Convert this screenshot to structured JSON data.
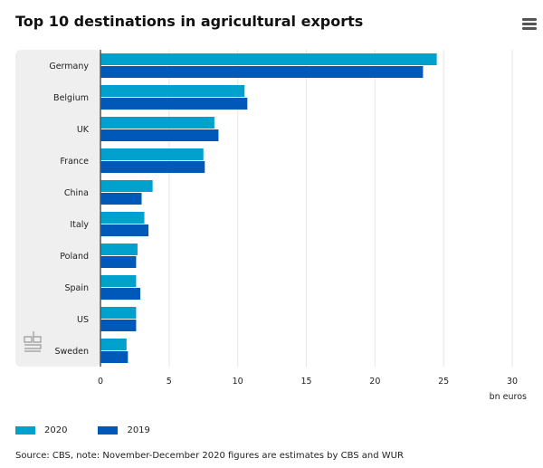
{
  "chart_data": {
    "type": "bar",
    "orientation": "horizontal",
    "title": "Top 10 destinations in agricultural exports",
    "categories": [
      "Germany",
      "Belgium",
      "UK",
      "France",
      "China",
      "Italy",
      "Poland",
      "Spain",
      "US",
      "Sweden"
    ],
    "series": [
      {
        "name": "2020",
        "color": "#00a1cd",
        "values": [
          24.5,
          10.5,
          8.3,
          7.5,
          3.8,
          3.2,
          2.7,
          2.6,
          2.6,
          1.9
        ]
      },
      {
        "name": "2019",
        "color": "#0058b8",
        "values": [
          23.5,
          10.7,
          8.6,
          7.6,
          3.0,
          3.5,
          2.6,
          2.9,
          2.6,
          2.0
        ]
      }
    ],
    "xlabel": "bn euros",
    "xlim": [
      0,
      30
    ],
    "xticks": [
      "0",
      "5",
      "10",
      "15",
      "20",
      "25",
      "30"
    ],
    "grid": true,
    "legend": "bottom-left",
    "source": "Source: CBS, note: November-December 2020 figures are estimates by CBS and WUR"
  },
  "icons": {
    "menu": "hamburger-menu-icon",
    "logo": "cbs-logo"
  }
}
